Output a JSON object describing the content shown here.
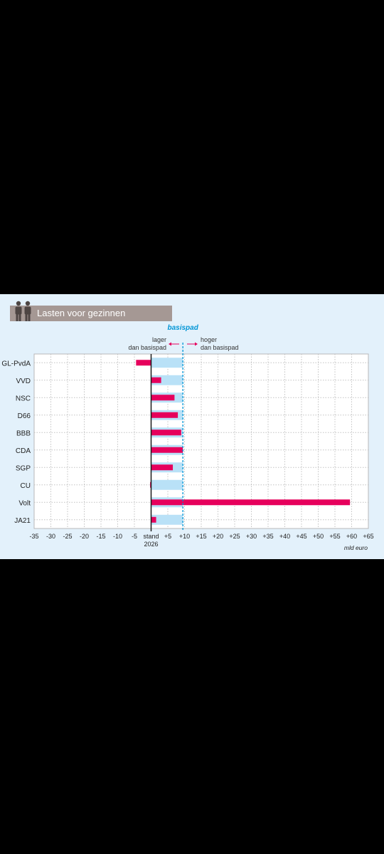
{
  "title": "Lasten voor gezinnen",
  "icon": "family-icon",
  "colors": {
    "background": "#e3f1fb",
    "bar": "#e6005c",
    "baseline_band": "#b9e1f7",
    "basispad": "#0095d6",
    "title_bar": "#a59894"
  },
  "annotations": {
    "basispad": "basispad",
    "lower_line1": "lager",
    "lower_line2": "dan basispad",
    "higher_line1": "hoger",
    "higher_line2": "dan basispad",
    "baseline_label_line1": "stand",
    "baseline_label_line2": "2026",
    "unit": "mld euro"
  },
  "chart_data": {
    "type": "bar",
    "orientation": "horizontal",
    "categories": [
      "GL-PvdA",
      "VVD",
      "NSC",
      "D66",
      "BBB",
      "CDA",
      "SGP",
      "CU",
      "Volt",
      "JA21"
    ],
    "values": [
      -4.5,
      3,
      7,
      8,
      9,
      9.5,
      6.5,
      -0.3,
      59.5,
      1.5
    ],
    "basispad_value": 9.5,
    "xlim": [
      -35,
      65
    ],
    "x_ticks": [
      -35,
      -30,
      -25,
      -20,
      -15,
      -10,
      -5,
      0,
      5,
      10,
      15,
      20,
      25,
      30,
      35,
      40,
      45,
      50,
      55,
      60,
      65
    ],
    "x_tick_labels": [
      "-35",
      "-30",
      "-25",
      "-20",
      "-15",
      "-10",
      "-5",
      "",
      "+5",
      "+10",
      "+15",
      "+20",
      "+25",
      "+30",
      "+35",
      "+40",
      "+45",
      "+50",
      "+55",
      "+60",
      "+65"
    ],
    "xlabel": "mld euro",
    "grid": true
  }
}
